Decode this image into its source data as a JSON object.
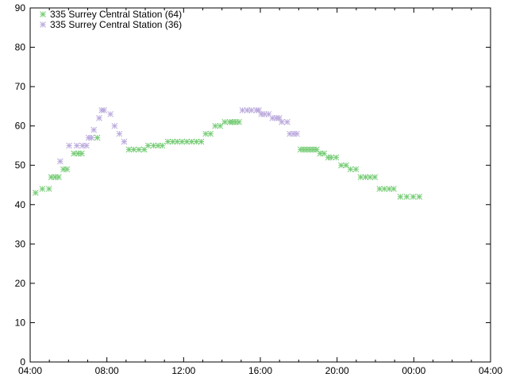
{
  "chart_data": {
    "type": "scatter",
    "title": "",
    "xlabel": "",
    "ylabel": "",
    "xlim": [
      "04:00",
      "04:00 (+1 day)"
    ],
    "ylim": [
      0,
      90
    ],
    "grid": false,
    "legend_position": "top-left",
    "x_tick_labels": [
      "04:00",
      "08:00",
      "12:00",
      "16:00",
      "20:00",
      "00:00",
      "04:00"
    ],
    "y_tick_labels": [
      "0",
      "10",
      "20",
      "30",
      "40",
      "50",
      "60",
      "70",
      "80",
      "90"
    ],
    "series": [
      {
        "name": "335 Surrey Central Station (64)",
        "color": "#77cc77",
        "marker": "asterisk",
        "points": [
          [
            "04:17",
            43
          ],
          [
            "04:38",
            44
          ],
          [
            "04:59",
            44
          ],
          [
            "05:06",
            47
          ],
          [
            "05:18",
            47
          ],
          [
            "05:29",
            47
          ],
          [
            "05:44",
            49
          ],
          [
            "05:55",
            49
          ],
          [
            "06:17",
            53
          ],
          [
            "06:30",
            53
          ],
          [
            "06:41",
            53
          ],
          [
            "07:30",
            57
          ],
          [
            "09:09",
            54
          ],
          [
            "09:24",
            54
          ],
          [
            "09:40",
            54
          ],
          [
            "09:57",
            54
          ],
          [
            "10:09",
            55
          ],
          [
            "10:26",
            55
          ],
          [
            "10:40",
            55
          ],
          [
            "10:53",
            55
          ],
          [
            "11:11",
            56
          ],
          [
            "11:26",
            56
          ],
          [
            "11:40",
            56
          ],
          [
            "11:55",
            56
          ],
          [
            "12:10",
            56
          ],
          [
            "12:25",
            56
          ],
          [
            "12:40",
            56
          ],
          [
            "12:55",
            56
          ],
          [
            "13:09",
            58
          ],
          [
            "13:24",
            58
          ],
          [
            "13:39",
            60
          ],
          [
            "13:54",
            60
          ],
          [
            "14:09",
            61
          ],
          [
            "14:24",
            61
          ],
          [
            "14:32",
            61
          ],
          [
            "14:42",
            61
          ],
          [
            "14:53",
            61
          ],
          [
            "18:06",
            54
          ],
          [
            "18:16",
            54
          ],
          [
            "18:26",
            54
          ],
          [
            "18:36",
            54
          ],
          [
            "18:46",
            54
          ],
          [
            "18:56",
            54
          ],
          [
            "19:07",
            53
          ],
          [
            "19:19",
            53
          ],
          [
            "19:32",
            52
          ],
          [
            "19:42",
            52
          ],
          [
            "19:57",
            52
          ],
          [
            "20:13",
            50
          ],
          [
            "20:28",
            50
          ],
          [
            "20:42",
            49
          ],
          [
            "20:59",
            49
          ],
          [
            "21:14",
            47
          ],
          [
            "21:29",
            47
          ],
          [
            "21:43",
            47
          ],
          [
            "21:58",
            47
          ],
          [
            "22:13",
            44
          ],
          [
            "22:28",
            44
          ],
          [
            "22:43",
            44
          ],
          [
            "22:57",
            44
          ],
          [
            "23:18",
            42
          ],
          [
            "23:38",
            42
          ],
          [
            "23:58",
            42
          ],
          [
            "00:17",
            42
          ]
        ]
      },
      {
        "name": "335 Surrey Central Station (36)",
        "color": "#bbaadd",
        "marker": "asterisk",
        "points": [
          [
            "05:34",
            51
          ],
          [
            "06:02",
            55
          ],
          [
            "06:26",
            55
          ],
          [
            "06:44",
            55
          ],
          [
            "06:56",
            55
          ],
          [
            "07:03",
            57
          ],
          [
            "07:12",
            57
          ],
          [
            "07:19",
            59
          ],
          [
            "07:36",
            62
          ],
          [
            "07:44",
            64
          ],
          [
            "07:51",
            64
          ],
          [
            "08:11",
            63
          ],
          [
            "08:24",
            60
          ],
          [
            "08:39",
            58
          ],
          [
            "08:54",
            56
          ],
          [
            "15:04",
            64
          ],
          [
            "15:19",
            64
          ],
          [
            "15:32",
            64
          ],
          [
            "15:48",
            64
          ],
          [
            "15:55",
            64
          ],
          [
            "16:03",
            63
          ],
          [
            "16:13",
            63
          ],
          [
            "16:26",
            63
          ],
          [
            "16:38",
            62
          ],
          [
            "16:50",
            62
          ],
          [
            "16:59",
            62
          ],
          [
            "17:07",
            61
          ],
          [
            "17:24",
            61
          ],
          [
            "17:32",
            58
          ],
          [
            "17:44",
            58
          ],
          [
            "17:54",
            58
          ]
        ]
      }
    ]
  }
}
